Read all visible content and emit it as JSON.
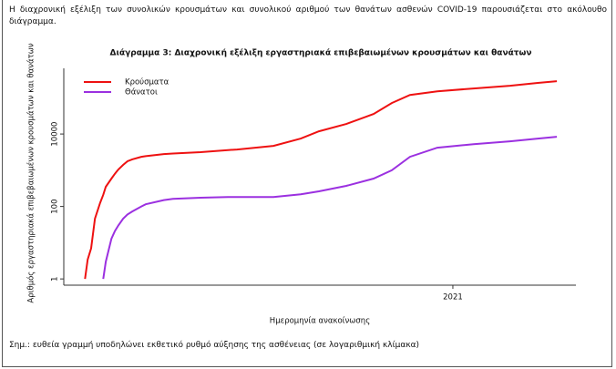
{
  "intro": "Η διαχρονική εξέλιξη των συνολικών κρουσμάτων και συνολικού αριθμού των θανάτων ασθενών COVID-19 παρουσιάζεται στο ακόλουθο διάγραμμα.",
  "note": "Σημ.: ευθεία γραμμή υποδηλώνει εκθετικό ρυθμό αύξησης της ασθένειας (σε λογαριθμική κλίμακα)",
  "chart_data": {
    "type": "line",
    "title": "Διάγραμμα 3: Διαχρονική εξέλιξη εργαστηριακά επιβεβαιωμένων κρουσμάτων και θανάτων",
    "x_label": "Ημερομηνία ανακοίνωσης",
    "y_label": "Αριθμός εργαστηριακά επιβεβαιωμένων κρουσμάτων και θανάτων",
    "y_scale": "log",
    "legend": "top-left",
    "xlim": [
      2020.102,
      2021.284
    ],
    "xticks": [
      2021
    ],
    "ylim": [
      0.8,
      650000
    ],
    "yticks": [
      1,
      100,
      10000
    ],
    "x": [
      2020.151,
      2020.157,
      2020.165,
      2020.174,
      2020.186,
      2020.193,
      2020.199,
      2020.212,
      2020.22,
      2020.228,
      2020.239,
      2020.249,
      2020.26,
      2020.281,
      2020.291,
      2020.333,
      2020.354,
      2020.418,
      2020.481,
      2020.502,
      2020.586,
      2020.649,
      2020.691,
      2020.754,
      2020.817,
      2020.859,
      2020.901,
      2020.964,
      2021.048,
      2021.132,
      2021.196,
      2021.24
    ],
    "series": [
      {
        "name": "Κρούσματα",
        "color": "#ee1111",
        "values": [
          1,
          3.4,
          7,
          46,
          126,
          210,
          350,
          590,
          800,
          1050,
          1400,
          1770,
          2000,
          2350,
          2450,
          2800,
          2900,
          3150,
          3600,
          3740,
          4700,
          7500,
          11900,
          18900,
          35800,
          71500,
          120000,
          151000,
          181000,
          215000,
          258000,
          288000
        ]
      },
      {
        "name": "Θάνατοι",
        "color": "#9b30e0",
        "values": [
          null,
          null,
          null,
          null,
          null,
          1,
          3,
          13,
          21,
          30,
          46,
          60,
          73,
          100,
          115,
          150,
          163,
          175,
          182,
          182,
          182,
          218,
          262,
          370,
          590,
          1000,
          2350,
          4200,
          5250,
          6300,
          7500,
          8400
        ]
      }
    ]
  }
}
